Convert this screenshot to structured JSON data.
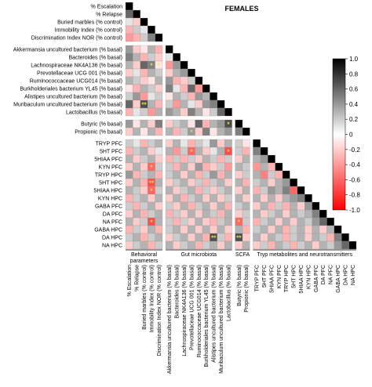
{
  "chart_data": {
    "type": "heatmap",
    "title": "FEMALES",
    "layout": "lower-triangular correlation matrix",
    "variables": [
      "% Escalation",
      "% Relapse",
      "Buried marbles (% control)",
      "Immobility Index (% control)",
      "Discrimination Index NOR (% control)",
      "Akkermansia uncultured bacterium (% basal)",
      "Bacteroides (% basal)",
      "Lachnospiraceae NK4A136 (% basal)",
      "Prevotellaceae UCG 001 (% basal)",
      "Ruminococcaceae UCG014 (% basal)",
      "Burkholderiales bacterium YL45 (% basal)",
      "Alistipes uncultured bacterium (% basal)",
      "Muribaculum uncultured bacterium (% basal)",
      "Lactobacillus (% basal)",
      "Butyric (% basal)",
      "Propionic (% basal)",
      "TRYP PFC",
      "5HT PFC",
      "5HIAA PFC",
      "KYN PFC",
      "TRYP HPC",
      "5HT HPC",
      "5HIAA HPC",
      "KYN HPC",
      "GABA PFC",
      "DA PFC",
      "NA PFC",
      "GABA HPC",
      "DA HPC",
      "NA HPC"
    ],
    "groups": [
      {
        "label": "Behavioral parameters",
        "label_lines": [
          "Behavioral",
          "parameters"
        ],
        "start": 0,
        "end": 4
      },
      {
        "label": "Gut microbiota",
        "label_lines": [
          "Gut microbiota"
        ],
        "start": 5,
        "end": 13
      },
      {
        "label": "SCFA",
        "label_lines": [
          "SCFA"
        ],
        "start": 14,
        "end": 15
      },
      {
        "label": "Tryp metabolites and neurotransmitters",
        "label_lines": [
          "Tryp metabolites and neurotransmitters"
        ],
        "start": 16,
        "end": 29
      }
    ],
    "colorbar": {
      "min": -1.0,
      "max": 1.0,
      "ticks": [
        "1.0",
        "0.8",
        "0.6",
        "0.4",
        "0.2",
        "0",
        "-0.2",
        "-0.4",
        "-0.6",
        "-0.8",
        "-1.0"
      ],
      "negative_color": "#ff0000",
      "positive_color": "#000000",
      "zero_color": "#ffffff"
    },
    "matrix": [
      [
        1
      ],
      [
        0.6,
        1
      ],
      [
        0.1,
        -0.2,
        1
      ],
      [
        -0.3,
        0.2,
        0.1,
        1
      ],
      [
        -0.4,
        -0.3,
        0.2,
        0.5,
        1
      ],
      [
        0.4,
        -0.2,
        -0.1,
        0.3,
        -0.3,
        1
      ],
      [
        0.5,
        0.3,
        -0.3,
        0.2,
        -0.2,
        0.1,
        1
      ],
      [
        0.3,
        -0.2,
        0.6,
        0.5,
        -0.1,
        -0.4,
        0.4,
        1
      ],
      [
        -0.2,
        0.1,
        -0.3,
        0.3,
        0.2,
        -0.2,
        0.3,
        0.4,
        1
      ],
      [
        0.3,
        0.2,
        -0.2,
        -0.1,
        0.3,
        0.4,
        -0.3,
        -0.2,
        0.2,
        1
      ],
      [
        -0.1,
        -0.3,
        0.3,
        0.2,
        -0.2,
        0.5,
        0.1,
        -0.3,
        0.6,
        -0.4,
        1
      ],
      [
        0.2,
        0.4,
        -0.4,
        0.1,
        0.2,
        -0.1,
        0.3,
        0.2,
        -0.3,
        0.4,
        0.3,
        1
      ],
      [
        0.6,
        -0.2,
        0.7,
        0.3,
        -0.3,
        0.2,
        -0.4,
        0.3,
        0.1,
        -0.2,
        0.4,
        0.5,
        1
      ],
      [
        -0.3,
        0.1,
        0.2,
        -0.4,
        0.3,
        0.4,
        0.3,
        -0.2,
        0.5,
        0.3,
        -0.1,
        0.2,
        0.6,
        1
      ],
      [
        0.4,
        -0.1,
        0.3,
        -0.2,
        0.5,
        -0.2,
        0.2,
        0.3,
        -0.1,
        0.6,
        -0.3,
        0.3,
        0.4,
        0.7,
        1
      ],
      [
        -0.2,
        0.3,
        -0.1,
        0.3,
        -0.3,
        0.3,
        -0.3,
        0.2,
        0.4,
        -0.2,
        0.5,
        -0.1,
        0.3,
        0.4,
        0.5,
        1
      ],
      [
        0.2,
        0.1,
        -0.3,
        0.2,
        0.3,
        -0.2,
        0.3,
        0.1,
        -0.3,
        0.2,
        0.1,
        0.4,
        -0.2,
        0.3,
        0.2,
        -0.1,
        1
      ],
      [
        -0.3,
        0.2,
        0.3,
        -0.2,
        0.1,
        0.3,
        -0.4,
        0.2,
        -0.6,
        0.3,
        -0.2,
        0.1,
        0.3,
        -0.7,
        0.2,
        -0.3,
        0.5,
        1
      ],
      [
        0.3,
        -0.2,
        0.2,
        0.3,
        -0.2,
        -0.3,
        0.2,
        -0.3,
        0.2,
        -0.2,
        0.3,
        0.2,
        -0.3,
        0.2,
        -0.2,
        0.3,
        0.3,
        0.4,
        1
      ],
      [
        -0.2,
        0.3,
        -0.2,
        -0.6,
        0.2,
        0.2,
        -0.3,
        0.3,
        -0.2,
        0.4,
        -0.3,
        -0.2,
        0.2,
        -0.4,
        0.3,
        0.2,
        -0.4,
        0.3,
        -0.3,
        1
      ],
      [
        0.4,
        -0.3,
        0.2,
        0.3,
        -0.3,
        0.2,
        0.3,
        -0.2,
        0.3,
        -0.3,
        0.2,
        0.4,
        -0.3,
        0.3,
        -0.2,
        0.2,
        0.3,
        -0.5,
        0.2,
        -0.3,
        1
      ],
      [
        -0.2,
        0.3,
        -0.3,
        -0.7,
        0.3,
        -0.2,
        0.2,
        0.3,
        -0.2,
        0.2,
        -0.3,
        0.2,
        0.3,
        -0.2,
        0.3,
        -0.3,
        0.2,
        0.3,
        -0.2,
        0.3,
        0.4,
        1
      ],
      [
        0.3,
        0.2,
        -0.2,
        -0.6,
        0.2,
        0.3,
        -0.2,
        0.2,
        0.3,
        -0.3,
        0.2,
        -0.2,
        0.2,
        0.3,
        -0.2,
        0.3,
        -0.3,
        0.2,
        0.4,
        0.3,
        0.5,
        -0.6,
        1
      ],
      [
        -0.3,
        0.2,
        0.3,
        -0.2,
        0.3,
        -0.2,
        0.3,
        -0.3,
        0.2,
        0.3,
        -0.2,
        0.3,
        -0.2,
        0.2,
        0.3,
        -0.2,
        0.3,
        -0.2,
        0.3,
        -0.2,
        0.3,
        0.4,
        0.5,
        1
      ],
      [
        0.2,
        -0.3,
        0.2,
        0.3,
        -0.2,
        0.2,
        -0.2,
        0.3,
        -0.3,
        0.2,
        0.3,
        -0.2,
        0.3,
        -0.3,
        0.2,
        0.3,
        -0.2,
        0.3,
        -0.3,
        0.2,
        -0.3,
        0.3,
        -0.2,
        0.4,
        1
      ],
      [
        -0.2,
        0.3,
        -0.3,
        0.2,
        0.3,
        -0.3,
        0.2,
        -0.2,
        0.3,
        -0.2,
        0.3,
        0.2,
        -0.3,
        0.3,
        -0.2,
        0.2,
        0.3,
        -0.2,
        0.2,
        0.3,
        -0.2,
        0.3,
        0.2,
        0.3,
        0.5,
        1
      ],
      [
        0.3,
        -0.2,
        0.2,
        -0.7,
        0.3,
        0.2,
        -0.3,
        0.2,
        -0.2,
        0.3,
        -0.2,
        -0.3,
        0.2,
        0.3,
        -0.6,
        0.2,
        -0.3,
        0.2,
        0.3,
        -0.2,
        0.3,
        -0.2,
        0.3,
        0.2,
        0.4,
        0.6,
        1
      ],
      [
        -0.3,
        0.2,
        -0.2,
        0.3,
        -0.3,
        0.2,
        0.3,
        -0.2,
        0.3,
        -0.2,
        0.3,
        -0.2,
        0.3,
        -0.2,
        0.3,
        -0.3,
        0.2,
        0.3,
        -0.2,
        0.3,
        -0.3,
        0.2,
        0.3,
        -0.2,
        0.3,
        -0.2,
        0.3,
        1
      ],
      [
        0.2,
        0.3,
        -0.3,
        0.2,
        0.3,
        -0.2,
        0.2,
        0.3,
        -0.2,
        0.3,
        -0.3,
        0.7,
        0.2,
        -0.3,
        0.7,
        -0.2,
        0.3,
        -0.2,
        0.3,
        0.2,
        -0.3,
        0.2,
        0.3,
        -0.2,
        0.3,
        0.2,
        -0.3,
        0.5,
        1
      ],
      [
        -0.2,
        0.2,
        0.3,
        -0.3,
        0.2,
        0.3,
        -0.2,
        0.2,
        0.3,
        -0.3,
        0.2,
        0.3,
        -0.2,
        0.3,
        -0.2,
        0.3,
        -0.2,
        0.2,
        -0.3,
        0.3,
        0.2,
        -0.3,
        0.2,
        0.3,
        -0.2,
        0.3,
        0.2,
        0.4,
        0.6,
        1
      ]
    ],
    "significance": [
      {
        "row": 7,
        "col": 3,
        "mark": "*"
      },
      {
        "row": 7,
        "col": 4,
        "mark": "*"
      },
      {
        "row": 12,
        "col": 2,
        "mark": "**"
      },
      {
        "row": 14,
        "col": 13,
        "mark": "*"
      },
      {
        "row": 15,
        "col": 8,
        "mark": "*"
      },
      {
        "row": 17,
        "col": 8,
        "mark": "*"
      },
      {
        "row": 17,
        "col": 13,
        "mark": "*"
      },
      {
        "row": 19,
        "col": 3,
        "mark": "*"
      },
      {
        "row": 21,
        "col": 3,
        "mark": "**"
      },
      {
        "row": 22,
        "col": 3,
        "mark": "*"
      },
      {
        "row": 26,
        "col": 3,
        "mark": "*"
      },
      {
        "row": 26,
        "col": 14,
        "mark": "*"
      },
      {
        "row": 28,
        "col": 11,
        "mark": "**"
      },
      {
        "row": 28,
        "col": 14,
        "mark": "**"
      }
    ],
    "colors": {
      "significance_mark": "#f2e34c",
      "cell_border": "#999999",
      "diagonal": "#000000"
    }
  }
}
